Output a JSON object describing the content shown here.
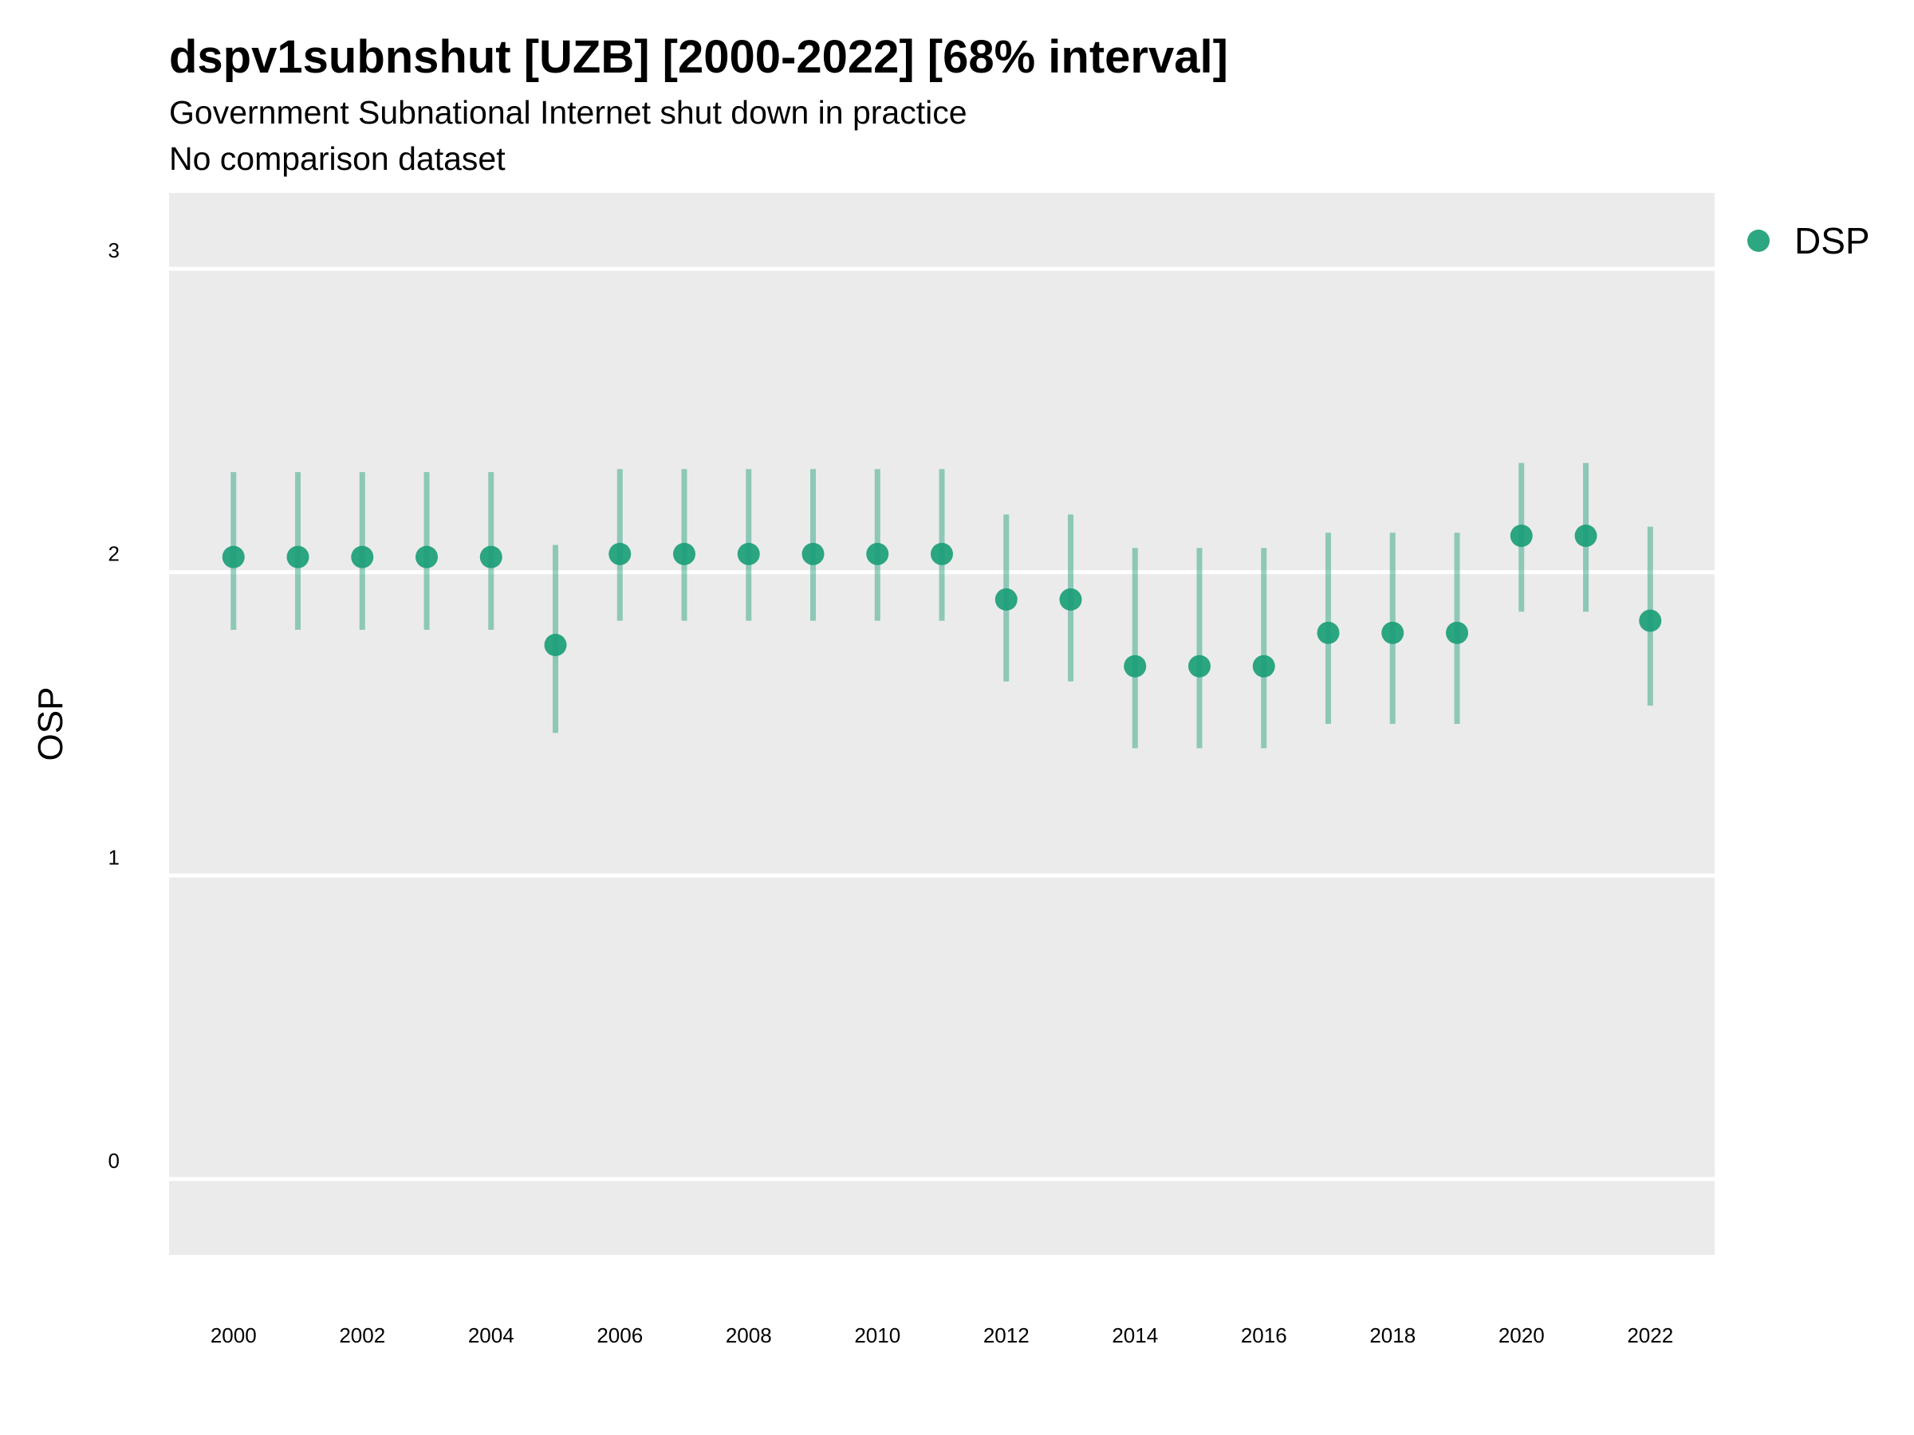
{
  "chart_data": {
    "type": "scatter",
    "title": "dspv1subnshut [UZB] [2000-2022] [68% interval]",
    "subtitle": "Government Subnational Internet shut down in practice",
    "subtitle2": "No comparison dataset",
    "xlabel": "",
    "ylabel": "OSP",
    "ylim": [
      -0.25,
      3.25
    ],
    "xlim": [
      1999,
      2023
    ],
    "x_ticks": [
      "2000",
      "2002",
      "2004",
      "2006",
      "2008",
      "2010",
      "2012",
      "2014",
      "2016",
      "2018",
      "2020",
      "2022"
    ],
    "y_ticks": [
      "0",
      "1",
      "2",
      "3"
    ],
    "grid": true,
    "legend": {
      "position": "top-right",
      "entries": [
        "DSP"
      ]
    },
    "series": [
      {
        "name": "DSP",
        "color": "#1b9e77",
        "x": [
          2000,
          2001,
          2002,
          2003,
          2004,
          2005,
          2006,
          2007,
          2008,
          2009,
          2010,
          2011,
          2012,
          2013,
          2014,
          2015,
          2016,
          2017,
          2018,
          2019,
          2020,
          2021,
          2022
        ],
        "y": [
          2.05,
          2.05,
          2.05,
          2.05,
          2.05,
          1.76,
          2.06,
          2.06,
          2.06,
          2.06,
          2.06,
          2.06,
          1.91,
          1.91,
          1.69,
          1.69,
          1.69,
          1.8,
          1.8,
          1.8,
          2.12,
          2.12,
          1.84
        ],
        "lower": [
          1.81,
          1.81,
          1.81,
          1.81,
          1.81,
          1.47,
          1.84,
          1.84,
          1.84,
          1.84,
          1.84,
          1.84,
          1.64,
          1.64,
          1.42,
          1.42,
          1.42,
          1.5,
          1.5,
          1.5,
          1.87,
          1.87,
          1.56
        ],
        "upper": [
          2.33,
          2.33,
          2.33,
          2.33,
          2.33,
          2.09,
          2.34,
          2.34,
          2.34,
          2.34,
          2.34,
          2.34,
          2.19,
          2.19,
          2.08,
          2.08,
          2.08,
          2.13,
          2.13,
          2.13,
          2.36,
          2.36,
          2.15
        ]
      }
    ]
  }
}
